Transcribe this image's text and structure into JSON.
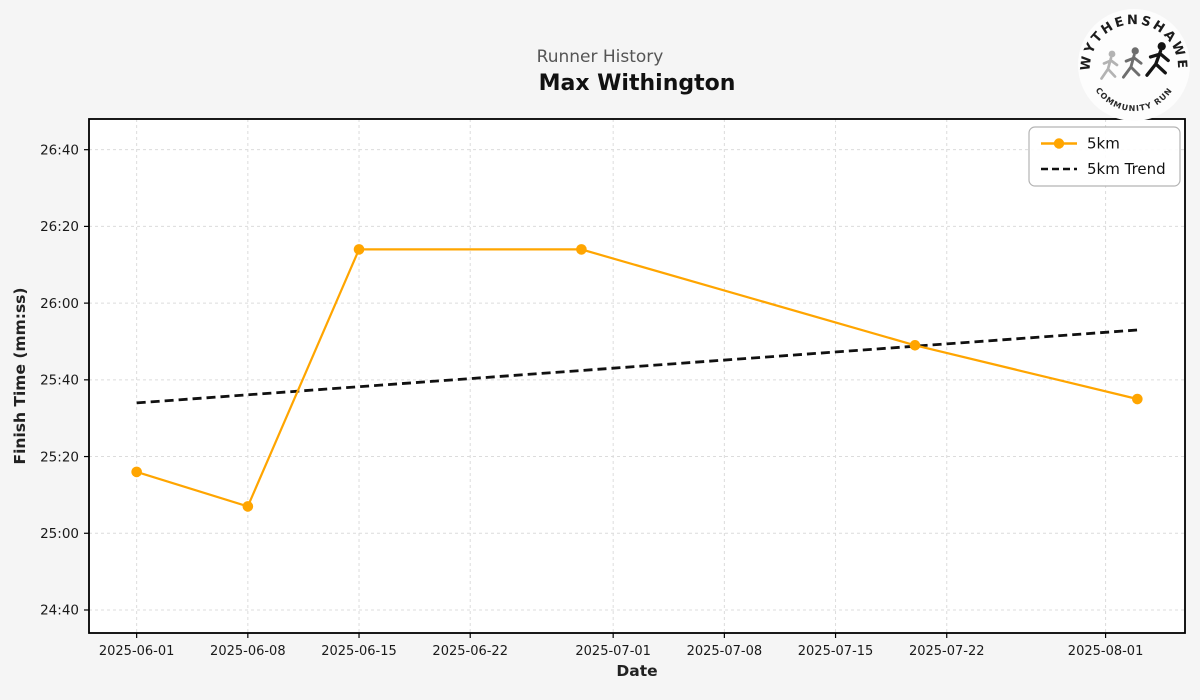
{
  "header": {
    "subtitle": "Runner History",
    "title": "Max Withington"
  },
  "logo": {
    "top_text": "WYTHENSHAWE",
    "bottom_text": "COMMUNITY RUN"
  },
  "colors": {
    "background": "#f5f5f5",
    "plot_background": "#ffffff",
    "grid": "#dcdcdc",
    "spine": "#000000",
    "tick_label": "#1a1a1a",
    "accent_orange": "#FFA500",
    "trend_black": "#111111",
    "subtitle_gray": "#555555",
    "legend_border": "#b3b3b3"
  },
  "chart_data": {
    "type": "line",
    "title": "Max Withington",
    "subtitle": "Runner History",
    "xlabel": "Date",
    "ylabel": "Finish Time (mm:ss)",
    "grid": true,
    "legend_position": "upper-right",
    "x_ticks": [
      "2025-06-01",
      "2025-06-08",
      "2025-06-15",
      "2025-06-22",
      "2025-07-01",
      "2025-07-08",
      "2025-07-15",
      "2025-07-22",
      "2025-08-01"
    ],
    "y_ticks": [
      "24:40",
      "25:00",
      "25:20",
      "25:40",
      "26:00",
      "26:20",
      "26:40"
    ],
    "xlim": [
      "2025-05-29",
      "2025-08-06"
    ],
    "ylim": [
      "24:34",
      "26:48"
    ],
    "series": [
      {
        "name": "5km",
        "color": "#FFA500",
        "line_style": "solid",
        "marker": "circle",
        "points": [
          {
            "date": "2025-06-01",
            "time": "25:16"
          },
          {
            "date": "2025-06-08",
            "time": "25:07"
          },
          {
            "date": "2025-06-15",
            "time": "26:14"
          },
          {
            "date": "2025-06-29",
            "time": "26:14"
          },
          {
            "date": "2025-07-20",
            "time": "25:49"
          },
          {
            "date": "2025-08-03",
            "time": "25:35"
          }
        ]
      },
      {
        "name": "5km Trend",
        "color": "#111111",
        "line_style": "dashed",
        "marker": "none",
        "points": [
          {
            "date": "2025-06-01",
            "time": "25:34"
          },
          {
            "date": "2025-08-03",
            "time": "25:53"
          }
        ]
      }
    ]
  }
}
